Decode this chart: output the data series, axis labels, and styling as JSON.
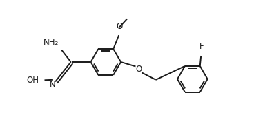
{
  "bg_color": "#ffffff",
  "line_color": "#1a1a1a",
  "line_width": 1.4,
  "font_size": 8.5,
  "figsize": [
    3.81,
    1.8
  ],
  "dpi": 100,
  "xlim": [
    0,
    7.6
  ],
  "ylim": [
    0,
    3.6
  ]
}
